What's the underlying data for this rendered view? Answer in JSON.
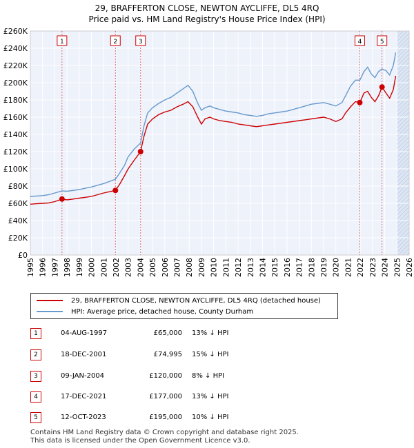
{
  "title_line1": "29, BRAFFERTON CLOSE, NEWTON AYCLIFFE, DL5 4RQ",
  "title_line2": "Price paid vs. HM Land Registry's House Price Index (HPI)",
  "legend": {
    "property": "29, BRAFFERTON CLOSE, NEWTON AYCLIFFE, DL5 4RQ (detached house)",
    "hpi": "HPI: Average price, detached house, County Durham"
  },
  "colors": {
    "property": "#cc0000",
    "hpi": "#6699cc",
    "plot_bg": "#eef2fb",
    "shade": "#dce6f5",
    "grid": "#ffffff"
  },
  "transactions": [
    {
      "n": "1",
      "date": "04-AUG-1997",
      "price": "£65,000",
      "hpi": "13% ↓ HPI"
    },
    {
      "n": "2",
      "date": "18-DEC-2001",
      "price": "£74,995",
      "hpi": "15% ↓ HPI"
    },
    {
      "n": "3",
      "date": "09-JAN-2004",
      "price": "£120,000",
      "hpi": "8% ↓ HPI"
    },
    {
      "n": "4",
      "date": "17-DEC-2021",
      "price": "£177,000",
      "hpi": "13% ↓ HPI"
    },
    {
      "n": "5",
      "date": "12-OCT-2023",
      "price": "£195,000",
      "hpi": "10% ↓ HPI"
    }
  ],
  "footer_line1": "Contains HM Land Registry data © Crown copyright and database right 2025.",
  "footer_line2": "This data is licensed under the Open Government Licence v3.0.",
  "chart_data": {
    "type": "line",
    "xlim": [
      1995,
      2026
    ],
    "ylim": [
      0,
      260000
    ],
    "x_ticks": [
      "1995",
      "1996",
      "1997",
      "1998",
      "1999",
      "2000",
      "2001",
      "2002",
      "2003",
      "2004",
      "2005",
      "2006",
      "2007",
      "2008",
      "2009",
      "2010",
      "2011",
      "2012",
      "2013",
      "2014",
      "2015",
      "2016",
      "2017",
      "2018",
      "2019",
      "2020",
      "2021",
      "2022",
      "2023",
      "2024",
      "2025",
      "2026"
    ],
    "y_ticks": [
      {
        "v": 0,
        "label": "£0"
      },
      {
        "v": 20000,
        "label": "£20K"
      },
      {
        "v": 40000,
        "label": "£40K"
      },
      {
        "v": 60000,
        "label": "£60K"
      },
      {
        "v": 80000,
        "label": "£80K"
      },
      {
        "v": 100000,
        "label": "£100K"
      },
      {
        "v": 120000,
        "label": "£120K"
      },
      {
        "v": 140000,
        "label": "£140K"
      },
      {
        "v": 160000,
        "label": "£160K"
      },
      {
        "v": 180000,
        "label": "£180K"
      },
      {
        "v": 200000,
        "label": "£200K"
      },
      {
        "v": 220000,
        "label": "£220K"
      },
      {
        "v": 240000,
        "label": "£240K"
      },
      {
        "v": 260000,
        "label": "£260K"
      }
    ],
    "grid": true,
    "future_from": 2025.0,
    "series": [
      {
        "name": "29, BRAFFERTON CLOSE, NEWTON AYCLIFFE, DL5 4RQ (detached house)",
        "x": [
          1995.0,
          1995.5,
          1996.0,
          1996.5,
          1997.0,
          1997.59,
          1998.0,
          1998.5,
          1999.0,
          1999.5,
          2000.0,
          2000.5,
          2001.0,
          2001.5,
          2001.96,
          2002.3,
          2002.7,
          2003.0,
          2003.5,
          2004.02,
          2004.3,
          2004.6,
          2005.0,
          2005.5,
          2006.0,
          2006.5,
          2007.0,
          2007.5,
          2007.9,
          2008.3,
          2008.7,
          2009.0,
          2009.3,
          2009.7,
          2010.0,
          2010.5,
          2011.0,
          2011.5,
          2012.0,
          2012.5,
          2013.0,
          2013.5,
          2014.0,
          2014.5,
          2015.0,
          2015.5,
          2016.0,
          2016.5,
          2017.0,
          2017.5,
          2018.0,
          2018.5,
          2019.0,
          2019.5,
          2020.0,
          2020.5,
          2020.8,
          2021.2,
          2021.6,
          2021.96,
          2022.3,
          2022.6,
          2022.9,
          2023.2,
          2023.5,
          2023.78,
          2024.1,
          2024.4,
          2024.7,
          2024.9
        ],
        "values": [
          59000,
          59500,
          60000,
          60500,
          62000,
          65000,
          64000,
          65000,
          66000,
          67000,
          68000,
          70000,
          72000,
          73500,
          74995,
          82000,
          92000,
          100000,
          110000,
          120000,
          138000,
          152000,
          158000,
          163000,
          166000,
          168000,
          172000,
          175000,
          178000,
          172000,
          160000,
          152000,
          158000,
          160000,
          158000,
          156000,
          155000,
          154000,
          152000,
          151000,
          150000,
          149000,
          150000,
          151000,
          152000,
          153000,
          154000,
          155000,
          156000,
          157000,
          158000,
          159000,
          160000,
          158000,
          155000,
          158000,
          165000,
          172000,
          178000,
          177000,
          188000,
          190000,
          183000,
          178000,
          185000,
          195000,
          188000,
          182000,
          192000,
          208000
        ]
      },
      {
        "name": "HPI: Average price, detached house, County Durham",
        "x": [
          1995.0,
          1995.5,
          1996.0,
          1996.5,
          1997.0,
          1997.59,
          1998.0,
          1998.5,
          1999.0,
          1999.5,
          2000.0,
          2000.5,
          2001.0,
          2001.5,
          2001.96,
          2002.3,
          2002.7,
          2003.0,
          2003.5,
          2004.02,
          2004.3,
          2004.6,
          2005.0,
          2005.5,
          2006.0,
          2006.5,
          2007.0,
          2007.5,
          2007.9,
          2008.3,
          2008.7,
          2009.0,
          2009.3,
          2009.7,
          2010.0,
          2010.5,
          2011.0,
          2011.5,
          2012.0,
          2012.5,
          2013.0,
          2013.5,
          2014.0,
          2014.5,
          2015.0,
          2015.5,
          2016.0,
          2016.5,
          2017.0,
          2017.5,
          2018.0,
          2018.5,
          2019.0,
          2019.5,
          2020.0,
          2020.5,
          2020.8,
          2021.2,
          2021.6,
          2021.96,
          2022.3,
          2022.6,
          2022.9,
          2023.2,
          2023.5,
          2023.78,
          2024.1,
          2024.4,
          2024.7,
          2024.9
        ],
        "values": [
          68000,
          68500,
          69000,
          70000,
          72000,
          74500,
          74000,
          75000,
          76000,
          77500,
          79000,
          81000,
          83000,
          85500,
          88000,
          95000,
          104000,
          114000,
          123000,
          130000,
          150000,
          165000,
          171000,
          176000,
          180000,
          183000,
          188000,
          193000,
          197000,
          190000,
          176000,
          168000,
          171000,
          173000,
          171000,
          169000,
          167000,
          166000,
          165000,
          163000,
          162000,
          161000,
          162000,
          164000,
          165000,
          166000,
          167000,
          169000,
          171000,
          173000,
          175000,
          176000,
          177000,
          175000,
          173000,
          177000,
          185000,
          196000,
          203000,
          203000,
          213000,
          218000,
          210000,
          206000,
          213000,
          216000,
          214000,
          209000,
          220000,
          235000
        ]
      }
    ],
    "markers": [
      {
        "label": "1",
        "x": 1997.59,
        "y": 65000
      },
      {
        "label": "2",
        "x": 2001.96,
        "y": 74995
      },
      {
        "label": "3",
        "x": 2004.02,
        "y": 120000
      },
      {
        "label": "4",
        "x": 2021.96,
        "y": 177000
      },
      {
        "label": "5",
        "x": 2023.78,
        "y": 195000
      }
    ]
  }
}
